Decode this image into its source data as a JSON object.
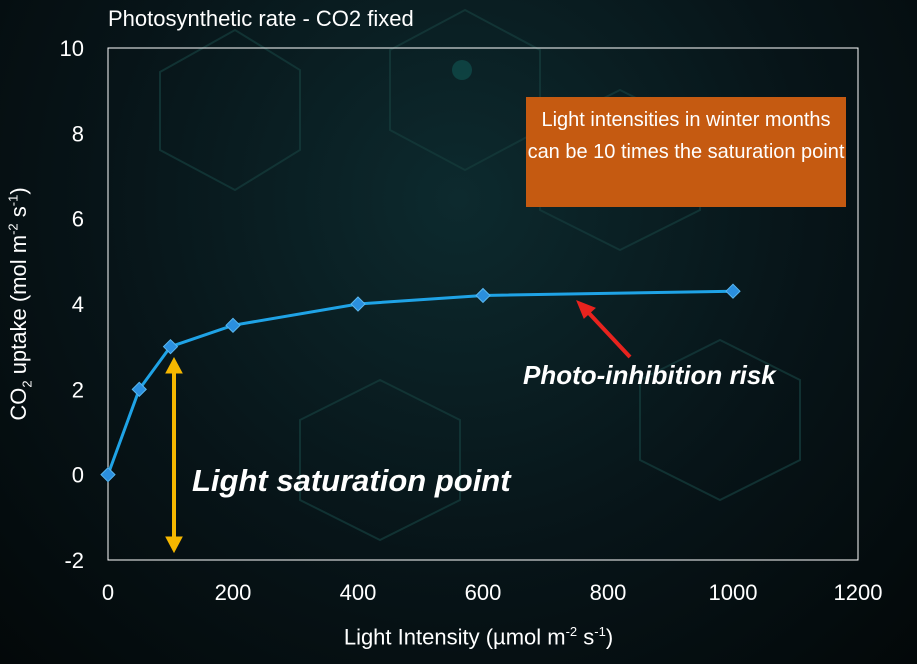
{
  "chart_data": {
    "type": "line",
    "title": "Photosynthetic rate - CO2 fixed",
    "xlabel": "Light Intensity (µmol m-2 s-1)",
    "ylabel": "CO2 uptake (mol m-2 s-1)",
    "xlabel_parts": {
      "a": "Light Intensity (µmol m",
      "b": "-2",
      "c": " s",
      "d": "-1",
      "e": ")"
    },
    "ylabel_parts": {
      "a": "CO",
      "b": "2",
      "c": " uptake (mol m",
      "d": "-2",
      "e": " s",
      "f": "-1",
      "g": ")"
    },
    "xlim": [
      0,
      1200
    ],
    "ylim": [
      -2,
      10
    ],
    "xticks": [
      0,
      200,
      400,
      600,
      800,
      1000,
      1200
    ],
    "yticks": [
      -2,
      0,
      2,
      4,
      6,
      8,
      10
    ],
    "grid": false,
    "series": [
      {
        "name": "CO2 uptake",
        "color": "#1fa3e6",
        "marker_color": "#2b8fde",
        "x": [
          0,
          50,
          100,
          200,
          400,
          600,
          1000
        ],
        "y": [
          0,
          2,
          3,
          3.5,
          4,
          4.2,
          4.3
        ]
      }
    ],
    "annotations": {
      "callout": "Light intensities in winter months can be  10 times the saturation point",
      "callout_color": "#c55a11",
      "photo_inhibition": "Photo-inhibition risk",
      "saturation": "Light saturation point",
      "saturation_arrow_color": "#f5b700",
      "inhibition_arrow_color": "#e8231e"
    }
  }
}
